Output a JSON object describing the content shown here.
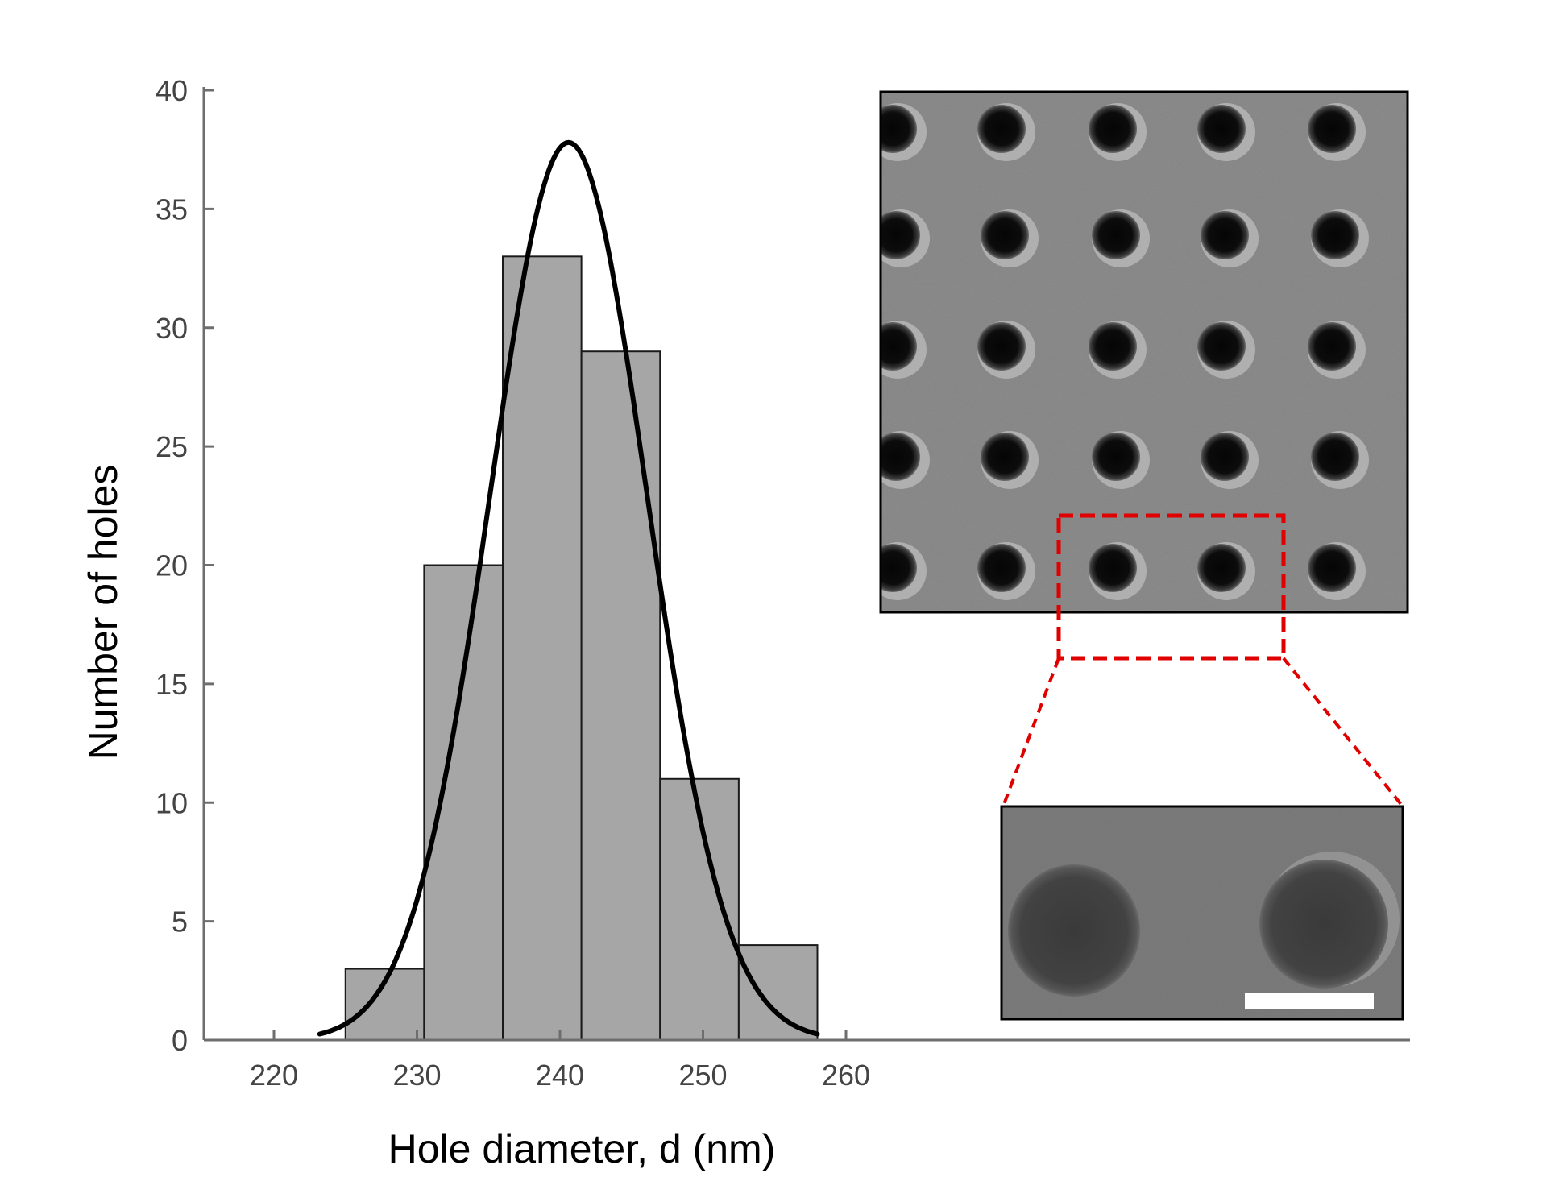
{
  "chart_data": {
    "type": "bar",
    "title": "",
    "xlabel": "Hole diameter, d (nm)",
    "ylabel": "Number of holes",
    "xlim": [
      215,
      260
    ],
    "ylim": [
      0,
      40
    ],
    "xticks": [
      220,
      230,
      240,
      250,
      260
    ],
    "yticks": [
      0,
      5,
      10,
      15,
      20,
      25,
      30,
      35,
      40
    ],
    "grid": false,
    "legend": "none",
    "bin_edges": [
      225.0,
      230.5,
      236.0,
      241.5,
      247.0,
      252.5,
      258.0
    ],
    "values": [
      3,
      20,
      33,
      29,
      11,
      4
    ],
    "bar_color": "#a6a6a6",
    "fit_curve": {
      "type": "gaussian",
      "mean": 240.6,
      "sigma": 5.5,
      "peak": 37.8,
      "x_range": [
        223.2,
        258.0
      ],
      "color": "#000000"
    }
  },
  "insets": [
    {
      "type": "micrograph",
      "grid_cols": 5,
      "grid_rows": 5,
      "selection_box_color": "#e00000"
    },
    {
      "type": "micrograph-zoom",
      "holes": 2,
      "scale_bar_color": "#ffffff"
    }
  ]
}
